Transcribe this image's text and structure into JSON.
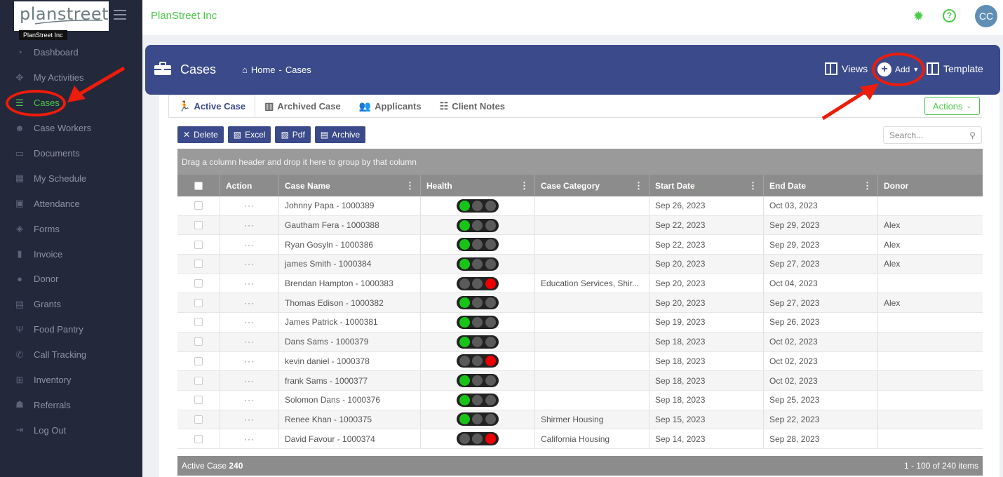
{
  "sidebar": {
    "logo_text": "planstreet",
    "logo_sub": "PlanStreet Inc",
    "items": [
      {
        "label": "Dashboard",
        "icon": "dashboard-icon",
        "glyph": "◔"
      },
      {
        "label": "My Activities",
        "icon": "activities-icon",
        "glyph": "✥"
      },
      {
        "label": "Cases",
        "icon": "list-icon",
        "glyph": "☰"
      },
      {
        "label": "Case Workers",
        "icon": "users-icon",
        "glyph": "☻"
      },
      {
        "label": "Documents",
        "icon": "document-icon",
        "glyph": "▭"
      },
      {
        "label": "My Schedule",
        "icon": "calendar-grid-icon",
        "glyph": "▦"
      },
      {
        "label": "Attendance",
        "icon": "calendar-check-icon",
        "glyph": "▣"
      },
      {
        "label": "Forms",
        "icon": "dropbox-icon",
        "glyph": "◈"
      },
      {
        "label": "Invoice",
        "icon": "file-icon",
        "glyph": "▮"
      },
      {
        "label": "Donor",
        "icon": "user-icon",
        "glyph": "●"
      },
      {
        "label": "Grants",
        "icon": "money-icon",
        "glyph": "▤"
      },
      {
        "label": "Food Pantry",
        "icon": "utensils-icon",
        "glyph": "Ψ"
      },
      {
        "label": "Call Tracking",
        "icon": "phone-icon",
        "glyph": "✆"
      },
      {
        "label": "Inventory",
        "icon": "cart-icon",
        "glyph": "⊞"
      },
      {
        "label": "Referrals",
        "icon": "user-plus-icon",
        "glyph": "☗"
      },
      {
        "label": "Log Out",
        "icon": "logout-icon",
        "glyph": "⇥"
      }
    ],
    "active_index": 2
  },
  "topbar": {
    "company": "PlanStreet Inc",
    "avatar": "CC",
    "help": "?"
  },
  "banner": {
    "title": "Cases",
    "crumb_home": "Home",
    "crumb_sep": "-",
    "crumb_current": "Cases",
    "views": "Views",
    "add": "Add",
    "template": "Template"
  },
  "tabs": [
    {
      "label": "Active Case",
      "icon": "running-icon",
      "glyph": "🏃"
    },
    {
      "label": "Archived Case",
      "icon": "archive-box-icon",
      "glyph": "▥"
    },
    {
      "label": "Applicants",
      "icon": "users-icon",
      "glyph": "👥"
    },
    {
      "label": "Client Notes",
      "icon": "list-icon",
      "glyph": "☷"
    }
  ],
  "actions_label": "Actions",
  "toolbar": {
    "delete": "Delete",
    "excel": "Excel",
    "pdf": "Pdf",
    "archive": "Archive"
  },
  "search": {
    "placeholder": "Search..."
  },
  "grid": {
    "group_hint": "Drag a column header and drop it here to group by that column",
    "columns": [
      "Action",
      "Case Name",
      "Health",
      "Case Category",
      "Start Date",
      "End Date",
      "Donor"
    ],
    "sort_indicator": "↓",
    "rows": [
      {
        "name": "Johnny Papa - 1000389",
        "health": "green",
        "category": "",
        "start": "Sep 26, 2023",
        "end": "Oct 03, 2023",
        "donor": ""
      },
      {
        "name": "Gautham Fera - 1000388",
        "health": "green",
        "category": "",
        "start": "Sep 22, 2023",
        "end": "Sep 29, 2023",
        "donor": "Alex"
      },
      {
        "name": "Ryan Gosyln - 1000386",
        "health": "green",
        "category": "",
        "start": "Sep 22, 2023",
        "end": "Sep 29, 2023",
        "donor": "Alex"
      },
      {
        "name": "james Smith - 1000384",
        "health": "green",
        "category": "",
        "start": "Sep 20, 2023",
        "end": "Sep 27, 2023",
        "donor": "Alex"
      },
      {
        "name": "Brendan Hampton - 1000383",
        "health": "red",
        "category": "Education Services, Shir...",
        "start": "Sep 20, 2023",
        "end": "Oct 04, 2023",
        "donor": ""
      },
      {
        "name": "Thomas Edison - 1000382",
        "health": "green",
        "category": "",
        "start": "Sep 20, 2023",
        "end": "Sep 27, 2023",
        "donor": "Alex"
      },
      {
        "name": "James Patrick - 1000381",
        "health": "green",
        "category": "",
        "start": "Sep 19, 2023",
        "end": "Sep 26, 2023",
        "donor": ""
      },
      {
        "name": "Dans Sams - 1000379",
        "health": "green",
        "category": "",
        "start": "Sep 18, 2023",
        "end": "Oct 02, 2023",
        "donor": ""
      },
      {
        "name": "kevin daniel - 1000378",
        "health": "red",
        "category": "",
        "start": "Sep 18, 2023",
        "end": "Oct 02, 2023",
        "donor": ""
      },
      {
        "name": "frank Sams - 1000377",
        "health": "green",
        "category": "",
        "start": "Sep 18, 2023",
        "end": "Oct 02, 2023",
        "donor": ""
      },
      {
        "name": "Solomon Dans - 1000376",
        "health": "green",
        "category": "",
        "start": "Sep 18, 2023",
        "end": "Sep 25, 2023",
        "donor": ""
      },
      {
        "name": "Renee Khan - 1000375",
        "health": "green",
        "category": "Shirmer Housing",
        "start": "Sep 15, 2023",
        "end": "Sep 22, 2023",
        "donor": ""
      },
      {
        "name": "David Favour - 1000374",
        "health": "red",
        "category": "California Housing",
        "start": "Sep 14, 2023",
        "end": "Sep 28, 2023",
        "donor": ""
      }
    ],
    "action_dots": "···"
  },
  "footer": {
    "label": "Active Case",
    "count": "240",
    "range": "1 - 100 of 240 items"
  },
  "colors": {
    "brand_green": "#4cc94a",
    "banner_blue": "#3b4a8a",
    "sidebar_bg": "#23283a",
    "annotation_red": "#ee1c0a",
    "health_green": "#18c418",
    "health_red": "#ee0000"
  }
}
